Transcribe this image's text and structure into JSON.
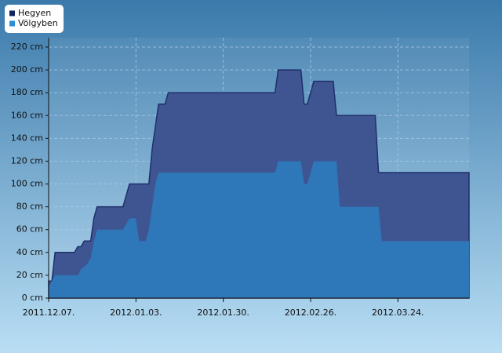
{
  "chart_data": {
    "type": "area",
    "series": [
      {
        "name": "Hegyen",
        "color": "#3f5592",
        "legend_color": "#12235e",
        "x": [
          "2011-12-07",
          "2011-12-08",
          "2011-12-09",
          "2011-12-15",
          "2011-12-16",
          "2011-12-17",
          "2011-12-18",
          "2011-12-20",
          "2011-12-21",
          "2011-12-22",
          "2011-12-30",
          "2012-01-01",
          "2012-01-07",
          "2012-01-08",
          "2012-01-10",
          "2012-01-12",
          "2012-01-13",
          "2012-02-15",
          "2012-02-16",
          "2012-02-23",
          "2012-02-24",
          "2012-02-25",
          "2012-02-27",
          "2012-03-04",
          "2012-03-05",
          "2012-03-17",
          "2012-03-18",
          "2012-04-15"
        ],
        "values": [
          15,
          15,
          40,
          40,
          45,
          45,
          50,
          50,
          70,
          80,
          80,
          100,
          100,
          130,
          170,
          170,
          180,
          180,
          200,
          200,
          170,
          170,
          190,
          190,
          160,
          160,
          110,
          110
        ]
      },
      {
        "name": "Völgyben",
        "color": "#2e77b8",
        "legend_color": "#2a8fd6",
        "x": [
          "2011-12-07",
          "2011-12-08",
          "2011-12-09",
          "2011-12-16",
          "2011-12-17",
          "2011-12-19",
          "2011-12-20",
          "2011-12-21",
          "2011-12-22",
          "2011-12-30",
          "2012-01-01",
          "2012-01-03",
          "2012-01-04",
          "2012-01-06",
          "2012-01-07",
          "2012-01-09",
          "2012-01-10",
          "2012-02-15",
          "2012-02-16",
          "2012-02-23",
          "2012-02-24",
          "2012-02-25",
          "2012-02-27",
          "2012-03-05",
          "2012-03-06",
          "2012-03-18",
          "2012-03-19",
          "2012-04-15"
        ],
        "values": [
          10,
          15,
          20,
          20,
          25,
          30,
          35,
          50,
          60,
          60,
          70,
          70,
          50,
          50,
          60,
          100,
          110,
          110,
          120,
          120,
          100,
          100,
          120,
          120,
          80,
          80,
          50,
          50
        ]
      }
    ],
    "xlim": [
      "2011-12-07",
      "2012-04-15"
    ],
    "xticks": [
      {
        "value": "2011-12-07",
        "label": "2011.12.07."
      },
      {
        "value": "2012-01-03",
        "label": "2012.01.03."
      },
      {
        "value": "2012-01-30",
        "label": "2012.01.30."
      },
      {
        "value": "2012-02-26",
        "label": "2012.02.26."
      },
      {
        "value": "2012-03-24",
        "label": "2012.03.24."
      }
    ],
    "ylim": [
      0,
      220
    ],
    "yticks": [
      {
        "value": 0,
        "label": "0 cm"
      },
      {
        "value": 20,
        "label": "20 cm"
      },
      {
        "value": 40,
        "label": "40 cm"
      },
      {
        "value": 60,
        "label": "60 cm"
      },
      {
        "value": 80,
        "label": "80 cm"
      },
      {
        "value": 100,
        "label": "100 cm"
      },
      {
        "value": 120,
        "label": "120 cm"
      },
      {
        "value": 140,
        "label": "140 cm"
      },
      {
        "value": 160,
        "label": "160 cm"
      },
      {
        "value": 180,
        "label": "180 cm"
      },
      {
        "value": 200,
        "label": "200 cm"
      },
      {
        "value": 220,
        "label": "220 cm"
      }
    ],
    "grid": true,
    "legend": "top-left"
  }
}
